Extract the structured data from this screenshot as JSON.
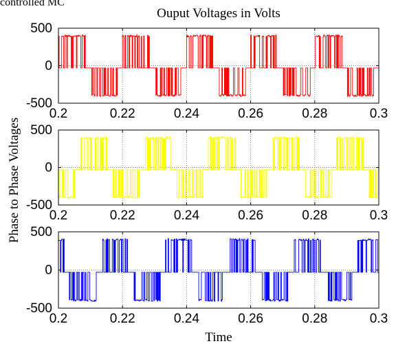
{
  "caption_fragment": "controlled MC",
  "chart_data": {
    "type": "line",
    "title": "Ouput Voltages in Volts",
    "xlabel": "Time",
    "ylabel": "Phase to Phase Voltages",
    "grid": true,
    "panels": [
      {
        "name": "",
        "color": "#ff0000",
        "xlim": [
          0.2,
          0.3
        ],
        "ylim": [
          -500,
          500
        ],
        "x_ticks": [
          "0.2",
          "0.22",
          "0.24",
          "0.26",
          "0.28",
          "0.3"
        ],
        "y_ticks": [
          "500",
          "0",
          "-500"
        ],
        "period": 0.02,
        "phase_offset": 0,
        "positive_band": [
          0,
          0.0084
        ],
        "negative_band": [
          0.01,
          0.0184
        ],
        "amplitude": 410,
        "zero_level": -30
      },
      {
        "name": "",
        "color": "#ffff00",
        "xlim": [
          0.2,
          0.3
        ],
        "ylim": [
          -500,
          500
        ],
        "x_ticks": [
          "0.2",
          "0.22",
          "0.24",
          "0.26",
          "0.28",
          "0.3"
        ],
        "y_ticks": [
          "500",
          "0",
          "-500"
        ],
        "period": 0.02,
        "phase_offset": 0.0067,
        "positive_band": [
          0,
          0.0084
        ],
        "negative_band": [
          0.01,
          0.0184
        ],
        "amplitude": 410,
        "zero_level": -30
      },
      {
        "name": "",
        "color": "#0000ff",
        "xlim": [
          0.2,
          0.3
        ],
        "ylim": [
          -500,
          500
        ],
        "x_ticks": [
          "0.2",
          "0.22",
          "0.24",
          "0.26",
          "0.28",
          "0.3"
        ],
        "y_ticks": [
          "500",
          "0",
          "-500"
        ],
        "period": 0.02,
        "phase_offset": 0.0133,
        "positive_band": [
          0,
          0.0084
        ],
        "negative_band": [
          0.01,
          0.0184
        ],
        "amplitude": 410,
        "zero_level": -30
      }
    ]
  }
}
